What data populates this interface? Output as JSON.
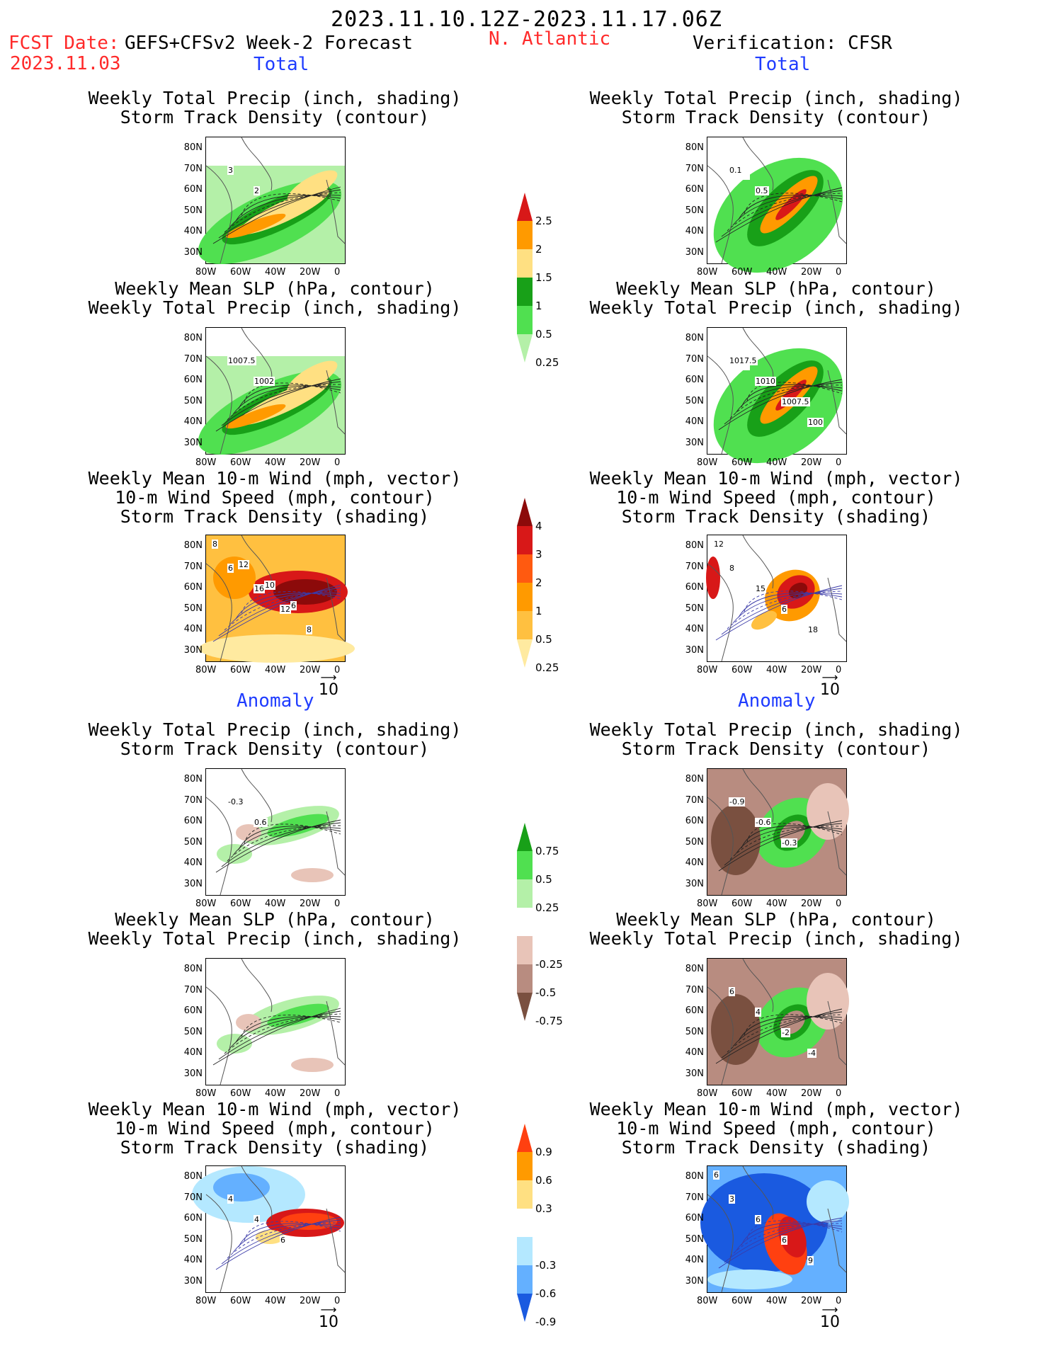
{
  "header": {
    "period": "2023.11.10.12Z-2023.11.17.06Z",
    "fcst_date_label": "FCST Date:",
    "model_label": "GEFS+CFSv2 Week-2 Forecast",
    "fcst_date": "2023.11.03",
    "region": "N. Atlantic",
    "verification": "Verification: CFSR"
  },
  "section_labels": {
    "total": "Total",
    "anomaly": "Anomaly"
  },
  "axis": {
    "y": [
      "80N",
      "70N",
      "60N",
      "50N",
      "40N",
      "30N"
    ],
    "x": [
      "80W",
      "60W",
      "40W",
      "20W",
      "0"
    ]
  },
  "vector_ref": "10",
  "panels": [
    {
      "title1": "Weekly Total Precip (inch, shading)",
      "title2": "Storm Track Density (contour)",
      "title3": "",
      "style": "precip",
      "labels": [
        "3",
        "2"
      ]
    },
    {
      "title1": "Weekly Total Precip (inch, shading)",
      "title2": "Storm Track Density (contour)",
      "title3": "",
      "style": "precip-obs",
      "labels": [
        "0.1",
        "0.5"
      ]
    },
    {
      "title1": "Weekly Mean SLP (hPa, contour)",
      "title2": "Weekly Total Precip (inch, shading)",
      "title3": "",
      "style": "precip",
      "labels": [
        "1007.5",
        "1002"
      ]
    },
    {
      "title1": "Weekly Mean SLP (hPa, contour)",
      "title2": "Weekly Total Precip (inch, shading)",
      "title3": "",
      "style": "precip-obs",
      "labels": [
        "1017.5",
        "1010",
        "1007.5",
        "100"
      ]
    },
    {
      "title1": "Weekly Mean 10-m Wind (mph, vector)",
      "title2": "10-m Wind Speed (mph, contour)",
      "title3": "Storm Track Density (shading)",
      "style": "density",
      "labels": [
        "6",
        "16",
        "12",
        "8",
        "8",
        "12",
        "10",
        "6"
      ]
    },
    {
      "title1": "Weekly Mean 10-m Wind (mph, vector)",
      "title2": "10-m Wind Speed (mph, contour)",
      "title3": "Storm Track Density (shading)",
      "style": "density-obs",
      "labels": [
        "8",
        "15",
        "6",
        "18",
        "12"
      ]
    },
    {
      "title1": "Weekly Total Precip (inch, shading)",
      "title2": "Storm Track Density (contour)",
      "title3": "",
      "style": "anom-precip",
      "labels": [
        "-0.3",
        "0.6"
      ]
    },
    {
      "title1": "Weekly Total Precip (inch, shading)",
      "title2": "Storm Track Density (contour)",
      "title3": "",
      "style": "anom-precip-obs",
      "labels": [
        "-0.9",
        "-0.6",
        "-0.3"
      ]
    },
    {
      "title1": "Weekly Mean SLP (hPa, contour)",
      "title2": "Weekly Total Precip (inch, shading)",
      "title3": "",
      "style": "anom-precip",
      "labels": []
    },
    {
      "title1": "Weekly Mean SLP (hPa, contour)",
      "title2": "Weekly Total Precip (inch, shading)",
      "title3": "",
      "style": "anom-precip-obs",
      "labels": [
        "6",
        "4",
        "-2",
        "-4"
      ]
    },
    {
      "title1": "Weekly Mean 10-m Wind (mph, vector)",
      "title2": "10-m Wind Speed (mph, contour)",
      "title3": "Storm Track Density (shading)",
      "style": "anom-density",
      "labels": [
        "4",
        "4",
        "6"
      ]
    },
    {
      "title1": "Weekly Mean 10-m Wind (mph, vector)",
      "title2": "10-m Wind Speed (mph, contour)",
      "title3": "Storm Track Density (shading)",
      "style": "anom-density-obs",
      "labels": [
        "3",
        "6",
        "6",
        "9",
        "6"
      ]
    }
  ],
  "colorbars": [
    {
      "name": "precip-colorbar",
      "labels": [
        "2.5",
        "2",
        "1.5",
        "1",
        "0.5",
        "0.25"
      ],
      "colors": [
        "#d81818",
        "#ff9a00",
        "#ffe082",
        "#18a018",
        "#50e050",
        "#b4f0a8"
      ]
    },
    {
      "name": "density-colorbar",
      "labels": [
        "4",
        "3",
        "2",
        "1",
        "0.5",
        "0.25"
      ],
      "colors": [
        "#8c0a0a",
        "#d81818",
        "#ff5a10",
        "#ff9a00",
        "#ffc040",
        "#ffeaa0"
      ]
    },
    {
      "name": "anom-precip-colorbar",
      "labels": [
        "0.75",
        "0.5",
        "0.25",
        "-0.25",
        "-0.5",
        "-0.75"
      ],
      "colors": [
        "#18a018",
        "#50e050",
        "#b4f0a8",
        "#ffffff",
        "#e8c4b8",
        "#b88c80",
        "#7a5040"
      ]
    },
    {
      "name": "anom-density-colorbar",
      "labels": [
        "0.9",
        "0.6",
        "0.3",
        "-0.3",
        "-0.6",
        "-0.9"
      ],
      "colors": [
        "#ff4010",
        "#ff9a00",
        "#ffe082",
        "#ffffff",
        "#b4e8ff",
        "#64b0ff",
        "#1a5ae0"
      ]
    }
  ]
}
